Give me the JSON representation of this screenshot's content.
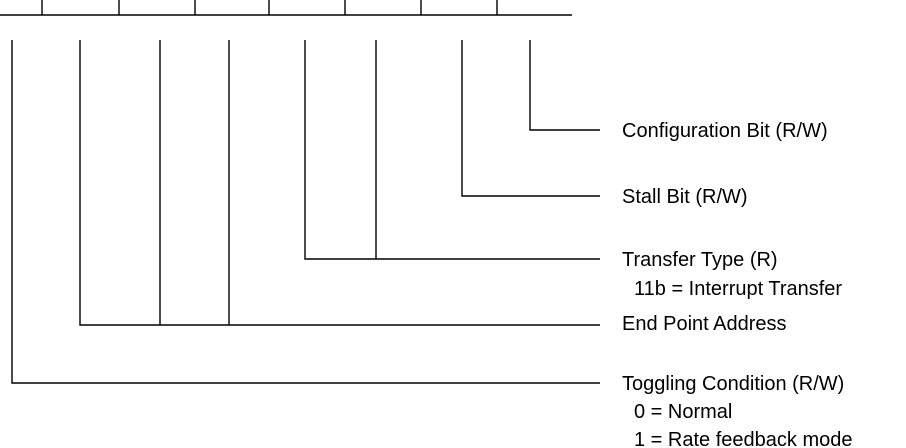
{
  "fields": [
    {
      "title": "Configuration Bit (R/W)",
      "notes": []
    },
    {
      "title": "Stall Bit (R/W)",
      "notes": []
    },
    {
      "title": "Transfer Type (R)",
      "notes": [
        "11b = Interrupt Transfer"
      ]
    },
    {
      "title": "End Point Address",
      "notes": []
    },
    {
      "title": "Toggling Condition (R/W)",
      "notes": [
        "0 = Normal",
        "1 = Rate feedback mode"
      ]
    }
  ]
}
